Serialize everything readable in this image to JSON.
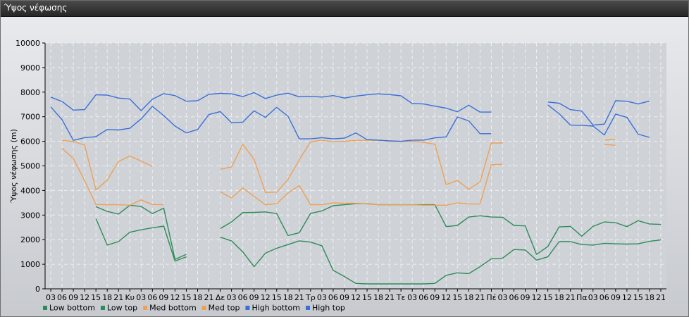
{
  "window": {
    "title": "Ύψος νέφωσης"
  },
  "chart_data": {
    "type": "line",
    "ylabel": "Ύψος νέφωσης (m)",
    "xlabel": "",
    "ylim": [
      0,
      10000
    ],
    "yticks": [
      0,
      1000,
      2000,
      3000,
      4000,
      5000,
      6000,
      7000,
      8000,
      9000,
      10000
    ],
    "grid": true,
    "legend_position": "bottom-left",
    "categories": [
      "03",
      "06",
      "09",
      "12",
      "15",
      "18",
      "21",
      "Κυ",
      "03",
      "06",
      "09",
      "12",
      "15",
      "18",
      "21",
      "Δε",
      "03",
      "06",
      "09",
      "12",
      "15",
      "18",
      "21",
      "Τρ",
      "03",
      "06",
      "09",
      "12",
      "15",
      "18",
      "21",
      "Τε",
      "03",
      "06",
      "09",
      "12",
      "15",
      "18",
      "21",
      "Πέ",
      "03",
      "06",
      "09",
      "12",
      "15",
      "18",
      "21",
      "Πα",
      "03",
      "06",
      "09",
      "12",
      "15",
      "18",
      "21"
    ],
    "series": [
      {
        "name": "Low bottom",
        "color": "#2e8b57",
        "values": [
          null,
          null,
          null,
          null,
          2850,
          1780,
          1920,
          2300,
          2400,
          2480,
          2550,
          1130,
          1300,
          null,
          null,
          2100,
          1950,
          1500,
          900,
          1450,
          1650,
          1800,
          1950,
          1900,
          1750,
          750,
          500,
          220,
          200,
          200,
          200,
          200,
          200,
          200,
          220,
          550,
          650,
          620,
          900,
          1220,
          1250,
          1600,
          1580,
          1170,
          1300,
          1920,
          1920,
          1800,
          1780,
          1850,
          1830,
          1820,
          1830,
          1930,
          1990
        ]
      },
      {
        "name": "Low top",
        "color": "#2e8b57",
        "values": [
          null,
          null,
          null,
          null,
          3340,
          3150,
          3040,
          3400,
          3350,
          3060,
          3280,
          1200,
          1400,
          null,
          null,
          2450,
          2720,
          3100,
          3110,
          3130,
          3060,
          2170,
          2280,
          3070,
          3170,
          3380,
          3420,
          3460,
          3460,
          3420,
          3420,
          3420,
          3420,
          3420,
          3420,
          2530,
          2580,
          2920,
          2970,
          2920,
          2910,
          2580,
          2560,
          1400,
          1720,
          2520,
          2540,
          2140,
          2540,
          2720,
          2690,
          2530,
          2770,
          2640,
          2620
        ]
      },
      {
        "name": "Med bottom",
        "color": "#f0a050",
        "values": [
          null,
          5720,
          5300,
          4400,
          3430,
          3420,
          3420,
          3400,
          3620,
          3430,
          3420,
          null,
          null,
          null,
          null,
          3950,
          3700,
          4100,
          3760,
          3420,
          3460,
          3900,
          4200,
          3420,
          3420,
          3500,
          3480,
          3480,
          3450,
          3420,
          3420,
          3420,
          3420,
          3400,
          3400,
          3400,
          3500,
          3450,
          3450,
          5050,
          5070,
          null,
          null,
          null,
          null,
          null,
          null,
          null,
          null,
          5870,
          5840,
          null,
          null,
          null,
          null
        ]
      },
      {
        "name": "Med top",
        "color": "#f0a050",
        "values": [
          null,
          6040,
          5990,
          5850,
          4020,
          4420,
          5180,
          5400,
          5200,
          4970,
          null,
          null,
          null,
          null,
          null,
          4860,
          4960,
          5870,
          5270,
          3920,
          3930,
          4450,
          5250,
          5980,
          6050,
          5980,
          6000,
          6040,
          6040,
          6040,
          6000,
          6000,
          6000,
          5960,
          5880,
          4240,
          4410,
          4050,
          4350,
          5930,
          5930,
          null,
          null,
          null,
          null,
          null,
          null,
          null,
          null,
          6050,
          6080,
          null,
          null,
          null,
          null
        ]
      },
      {
        "name": "High bottom",
        "color": "#3a6fd8",
        "values": [
          7400,
          6880,
          6040,
          6150,
          6190,
          6480,
          6460,
          6530,
          6910,
          7420,
          7050,
          6620,
          6340,
          6480,
          7090,
          7210,
          6760,
          6780,
          7240,
          6970,
          7380,
          7020,
          6100,
          6100,
          6150,
          6100,
          6130,
          6340,
          6070,
          6050,
          6020,
          6000,
          6050,
          6050,
          6140,
          6180,
          6990,
          6830,
          6310,
          6310,
          null,
          null,
          null,
          null,
          7480,
          7120,
          6660,
          6650,
          6620,
          6260,
          7110,
          6970,
          6290,
          6160,
          null
        ]
      },
      {
        "name": "High top",
        "color": "#3a6fd8",
        "values": [
          7800,
          7620,
          7270,
          7290,
          7890,
          7880,
          7760,
          7720,
          7250,
          7710,
          7940,
          7860,
          7630,
          7650,
          7910,
          7950,
          7930,
          7820,
          7980,
          7740,
          7880,
          7960,
          7810,
          7830,
          7800,
          7860,
          7760,
          7840,
          7890,
          7930,
          7900,
          7850,
          7540,
          7520,
          7430,
          7350,
          7200,
          7470,
          7190,
          7190,
          null,
          null,
          null,
          null,
          7600,
          7550,
          7290,
          7230,
          6660,
          6700,
          7650,
          7630,
          7520,
          7640,
          null
        ]
      }
    ]
  }
}
